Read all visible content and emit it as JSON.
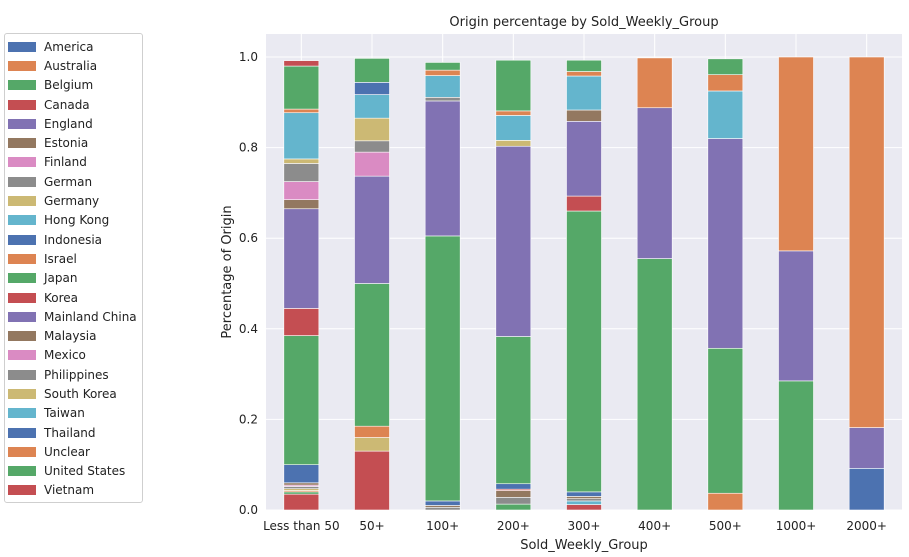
{
  "chart_data": {
    "type": "bar",
    "stacked": true,
    "title": "Origin percentage by Sold_Weekly_Group",
    "xlabel": "Sold_Weekly_Group",
    "ylabel": "Percentage of Origin",
    "ylim": [
      0,
      1.05
    ],
    "yticks": [
      "0.0",
      "0.2",
      "0.4",
      "0.6",
      "0.8",
      "1.0"
    ],
    "grid": true,
    "legend_position": "left",
    "categories": [
      "Less than 50",
      "50+",
      "100+",
      "200+",
      "300+",
      "400+",
      "500+",
      "1000+",
      "2000+"
    ],
    "series": [
      {
        "name": "Vietnam",
        "color": "#c44e52",
        "values": [
          0.035,
          0.13,
          0,
          0,
          0.012,
          0,
          0,
          0,
          0
        ]
      },
      {
        "name": "United States",
        "color": "#55a868",
        "values": [
          0.005,
          0,
          0,
          0.013,
          0,
          0,
          0,
          0,
          0
        ]
      },
      {
        "name": "Unclear",
        "color": "#dd8452",
        "values": [
          0.003,
          0,
          0,
          0,
          0,
          0,
          0,
          0,
          0
        ]
      },
      {
        "name": "Thailand",
        "color": "#4c72b0",
        "values": [
          0,
          0,
          0,
          0,
          0,
          0,
          0,
          0,
          0
        ]
      },
      {
        "name": "Taiwan",
        "color": "#64b5cd",
        "values": [
          0,
          0,
          0,
          0,
          0.008,
          0,
          0,
          0,
          0
        ]
      },
      {
        "name": "South Korea",
        "color": "#ccb974",
        "values": [
          0.004,
          0.03,
          0,
          0,
          0,
          0,
          0,
          0,
          0
        ]
      },
      {
        "name": "Philippines",
        "color": "#8c8c8c",
        "values": [
          0.005,
          0,
          0.006,
          0.015,
          0.005,
          0,
          0,
          0,
          0
        ]
      },
      {
        "name": "Mexico",
        "color": "#da8bc3",
        "values": [
          0.003,
          0,
          0,
          0,
          0,
          0,
          0,
          0,
          0
        ]
      },
      {
        "name": "Malaysia",
        "color": "#937860",
        "values": [
          0.005,
          0,
          0.004,
          0.015,
          0.005,
          0,
          0,
          0,
          0
        ]
      },
      {
        "name": "Mainland China",
        "color": "#8172b3",
        "values": [
          0,
          0,
          0,
          0,
          0,
          0,
          0,
          0,
          0
        ]
      },
      {
        "name": "Korea",
        "color": "#c44e52",
        "values": [
          0,
          0,
          0,
          0.003,
          0,
          0,
          0,
          0,
          0
        ]
      },
      {
        "name": "Japan",
        "color": "#55a868",
        "values": [
          0,
          0,
          0,
          0,
          0,
          0,
          0,
          0,
          0
        ]
      },
      {
        "name": "Israel",
        "color": "#dd8452",
        "values": [
          0,
          0.025,
          0,
          0,
          0,
          0,
          0.037,
          0,
          0
        ]
      },
      {
        "name": "Indonesia",
        "color": "#4c72b0",
        "values": [
          0.04,
          0,
          0.01,
          0.012,
          0.01,
          0,
          0,
          0,
          0.092
        ]
      },
      {
        "name": "Hong Kong",
        "color": "#64b5cd",
        "values": [
          0,
          0,
          0,
          0,
          0,
          0,
          0,
          0,
          0
        ]
      },
      {
        "name": "Germany",
        "color": "#ccb974",
        "values": [
          0,
          0,
          0,
          0,
          0,
          0,
          0,
          0,
          0
        ]
      },
      {
        "name": "German",
        "color": "#8c8c8c",
        "values": [
          0,
          0,
          0,
          0,
          0,
          0,
          0,
          0,
          0
        ]
      },
      {
        "name": "Finland",
        "color": "#da8bc3",
        "values": [
          0,
          0,
          0,
          0,
          0,
          0,
          0,
          0,
          0
        ]
      },
      {
        "name": "Estonia",
        "color": "#937860",
        "values": [
          0,
          0,
          0,
          0,
          0,
          0,
          0,
          0,
          0
        ]
      },
      {
        "name": "England",
        "color": "#8172b3",
        "values": [
          0,
          0,
          0,
          0,
          0,
          0,
          0,
          0,
          0.09
        ]
      },
      {
        "name": "Canada",
        "color": "#c44e52",
        "values": [
          0,
          0,
          0,
          0,
          0,
          0,
          0,
          0,
          0
        ]
      },
      {
        "name": "Belgium",
        "color": "#55a868",
        "values": [
          0.285,
          0.315,
          0.585,
          0.325,
          0.62,
          0.555,
          0.32,
          0.285,
          0
        ]
      },
      {
        "name": "Australia",
        "color": "#dd8452",
        "values": [
          0,
          0,
          0,
          0,
          0,
          0,
          0,
          0,
          0.818
        ]
      },
      {
        "name": "America",
        "color": "#4c72b0",
        "values": [
          0,
          0,
          0,
          0,
          0,
          0,
          0,
          0,
          0
        ]
      },
      {
        "name": "Korea",
        "color": "#c44e52",
        "values": [
          0.06,
          0,
          0,
          0,
          0.033,
          0,
          0,
          0,
          0
        ]
      },
      {
        "name": "Mainland China",
        "color": "#8172b3",
        "values": [
          0.22,
          0.237,
          0.298,
          0.42,
          0.165,
          0.333,
          0.463,
          0.287,
          0
        ]
      },
      {
        "name": "Malaysia",
        "color": "#937860",
        "values": [
          0.02,
          0,
          0,
          0,
          0.025,
          0,
          0,
          0,
          0
        ]
      },
      {
        "name": "Mexico",
        "color": "#da8bc3",
        "values": [
          0.04,
          0.053,
          0,
          0,
          0,
          0,
          0,
          0,
          0
        ]
      },
      {
        "name": "Philippines",
        "color": "#8c8c8c",
        "values": [
          0.04,
          0.025,
          0.008,
          0,
          0,
          0,
          0,
          0,
          0
        ]
      },
      {
        "name": "South Korea",
        "color": "#ccb974",
        "values": [
          0.01,
          0.05,
          0,
          0.013,
          0,
          0,
          0,
          0,
          0
        ]
      },
      {
        "name": "Taiwan",
        "color": "#64b5cd",
        "values": [
          0.102,
          0.052,
          0.048,
          0.055,
          0.075,
          0,
          0.105,
          0,
          0
        ]
      },
      {
        "name": "Thailand",
        "color": "#4c72b0",
        "values": [
          0,
          0.027,
          0,
          0,
          0,
          0,
          0,
          0,
          0
        ]
      },
      {
        "name": "Unclear",
        "color": "#dd8452",
        "values": [
          0.008,
          0,
          0.012,
          0.01,
          0.01,
          0.11,
          0.036,
          0.428,
          0
        ]
      },
      {
        "name": "United States",
        "color": "#55a868",
        "values": [
          0.095,
          0.053,
          0.017,
          0.112,
          0.025,
          0,
          0.035,
          0,
          0
        ]
      },
      {
        "name": "Vietnam",
        "color": "#c44e52",
        "values": [
          0.012,
          0,
          0,
          0,
          0,
          0,
          0,
          0,
          0
        ]
      }
    ],
    "legend": [
      {
        "label": "America",
        "color": "#4c72b0"
      },
      {
        "label": "Australia",
        "color": "#dd8452"
      },
      {
        "label": "Belgium",
        "color": "#55a868"
      },
      {
        "label": "Canada",
        "color": "#c44e52"
      },
      {
        "label": "England",
        "color": "#8172b3"
      },
      {
        "label": "Estonia",
        "color": "#937860"
      },
      {
        "label": "Finland",
        "color": "#da8bc3"
      },
      {
        "label": "German",
        "color": "#8c8c8c"
      },
      {
        "label": "Germany",
        "color": "#ccb974"
      },
      {
        "label": "Hong Kong",
        "color": "#64b5cd"
      },
      {
        "label": "Indonesia",
        "color": "#4c72b0"
      },
      {
        "label": "Israel",
        "color": "#dd8452"
      },
      {
        "label": "Japan",
        "color": "#55a868"
      },
      {
        "label": "Korea",
        "color": "#c44e52"
      },
      {
        "label": "Mainland China",
        "color": "#8172b3"
      },
      {
        "label": "Malaysia",
        "color": "#937860"
      },
      {
        "label": "Mexico",
        "color": "#da8bc3"
      },
      {
        "label": "Philippines",
        "color": "#8c8c8c"
      },
      {
        "label": "South Korea",
        "color": "#ccb974"
      },
      {
        "label": "Taiwan",
        "color": "#64b5cd"
      },
      {
        "label": "Thailand",
        "color": "#4c72b0"
      },
      {
        "label": "Unclear",
        "color": "#dd8452"
      },
      {
        "label": "United States",
        "color": "#55a868"
      },
      {
        "label": "Vietnam",
        "color": "#c44e52"
      }
    ]
  }
}
